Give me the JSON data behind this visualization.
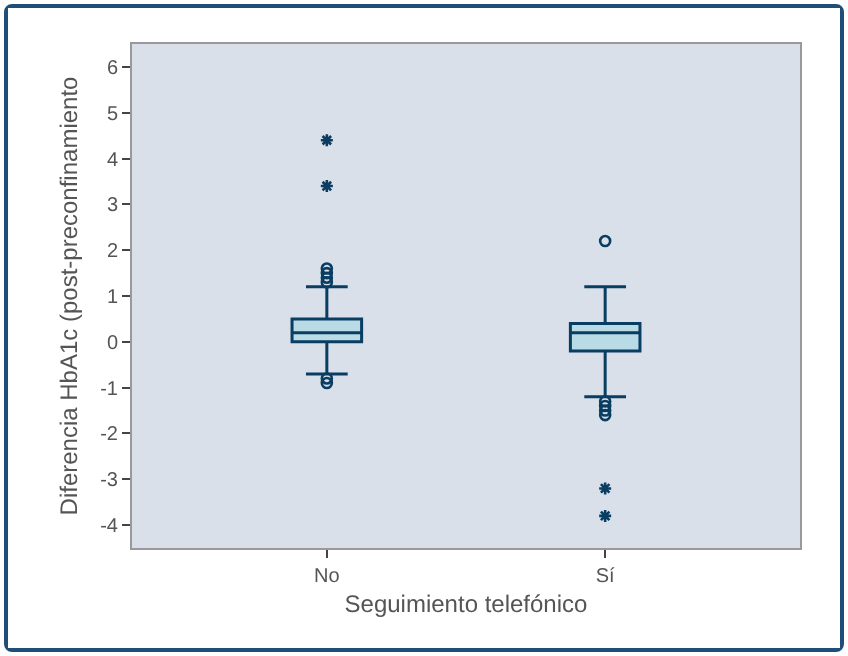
{
  "chart_data": {
    "type": "box",
    "xlabel": "Seguimiento telefónico",
    "ylabel": "Diferencia HbA1c (post-preconfinamiento",
    "categories": [
      "No",
      "Sí"
    ],
    "color": "#b9dbe6",
    "boxes": [
      {
        "low": -0.7,
        "q1": 0.0,
        "median": 0.2,
        "q3": 0.5,
        "high": 1.2,
        "outliers": [
          1.3,
          1.4,
          1.5,
          1.6,
          -0.8,
          -0.9,
          3.4,
          4.4
        ]
      },
      {
        "low": -1.2,
        "q1": -0.2,
        "median": 0.2,
        "q3": 0.4,
        "high": 1.2,
        "outliers": [
          2.2,
          -1.3,
          -1.4,
          -1.5,
          -1.6,
          -3.2,
          -3.8
        ]
      }
    ],
    "ylim": [
      -4.5,
      6.5
    ],
    "yticks": [
      -4,
      -3,
      -2,
      -1,
      0,
      1,
      2,
      3,
      4,
      5,
      6
    ],
    "grid": false
  }
}
